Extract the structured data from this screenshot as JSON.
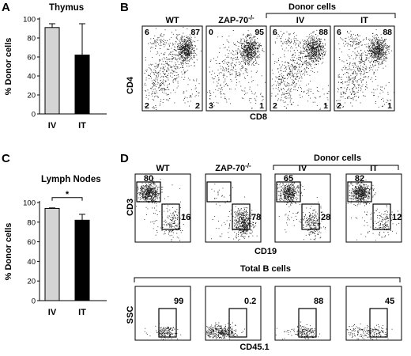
{
  "panels": {
    "A": "A",
    "B": "B",
    "C": "C",
    "D": "D"
  },
  "chart_data": [
    {
      "type": "bar",
      "title": "Thymus",
      "ylabel": "% Donor cells",
      "categories": [
        "IV",
        "IT"
      ],
      "values": [
        91,
        62
      ],
      "errors_upper": [
        4,
        33
      ],
      "ylim": [
        0,
        100
      ],
      "yticks": [
        "0",
        "20",
        "40",
        "60",
        "80",
        "100"
      ],
      "colors": [
        "#d4d4d4",
        "#000000"
      ]
    },
    {
      "type": "bar",
      "title": "Lymph Nodes",
      "ylabel": "% Donor cells",
      "categories": [
        "IV",
        "IT"
      ],
      "values": [
        94,
        82
      ],
      "errors_upper": [
        0.5,
        6
      ],
      "ylim": [
        0,
        100
      ],
      "yticks": [
        "0",
        "20",
        "40",
        "60",
        "80",
        "100"
      ],
      "colors": [
        "#d4d4d4",
        "#000000"
      ],
      "significance": "*"
    },
    {
      "type": "scatter",
      "panel": "B",
      "bracket_label": "Donor cells",
      "xlabel": "CD8",
      "ylabel": "CD4",
      "plots": [
        {
          "title": "WT",
          "q_tl": "6",
          "q_tr": "87",
          "q_bl": "2",
          "q_br": "2"
        },
        {
          "title": "ZAP-70",
          "sup": "-/-",
          "q_tl": "0",
          "q_tr": "95",
          "q_bl": "3",
          "q_br": "1"
        },
        {
          "title": "IV",
          "q_tl": "6",
          "q_tr": "88",
          "q_bl": "2",
          "q_br": "1"
        },
        {
          "title": "IT",
          "q_tl": "6",
          "q_tr": "88",
          "q_bl": "2",
          "q_br": "1"
        }
      ]
    },
    {
      "type": "scatter",
      "panel": "D-top",
      "bracket_label": "Donor cells",
      "xlabel": "CD19",
      "ylabel": "CD3",
      "plots": [
        {
          "title": "WT",
          "gate1": "80",
          "gate2": "16"
        },
        {
          "title": "ZAP-70",
          "sup": "-/-",
          "gate1": "",
          "gate2": "78"
        },
        {
          "title": "IV",
          "gate1": "65",
          "gate2": "28"
        },
        {
          "title": "IT",
          "gate1": "82",
          "gate2": "12"
        }
      ]
    },
    {
      "type": "scatter",
      "panel": "D-bottom",
      "bracket_label": "Total  B cells",
      "xlabel": "CD45.1",
      "ylabel": "SSC",
      "plots": [
        {
          "gate": "99"
        },
        {
          "gate": "0.2"
        },
        {
          "gate": "88"
        },
        {
          "gate": "45"
        }
      ]
    }
  ]
}
